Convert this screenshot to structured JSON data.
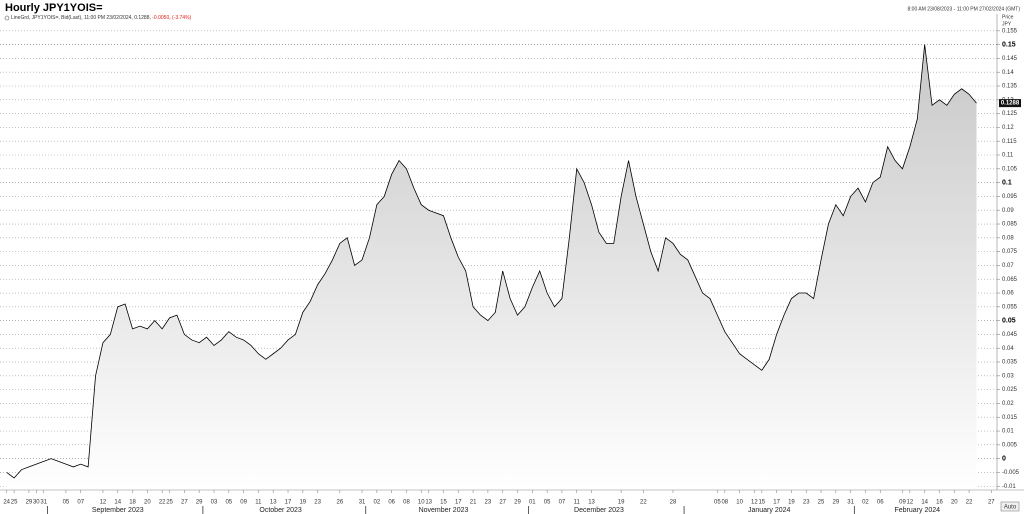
{
  "chart_data": {
    "type": "area",
    "title": "Hourly JPY1YOIS=",
    "date_range": "8:00 AM 23/08/2023 - 11:00 PM 27/02/2024 (GMT)",
    "legend_prefix": "LineGrd, ",
    "legend_details": ", Bid(Last), 11:00 PM 23/02/2024, 0.1288, ",
    "legend_change": "-0.0050",
    "legend_separator": ", ",
    "legend_pct": "(-3.74%)",
    "legend_change_color": "#e0201b",
    "y_label": "Price",
    "y_unit": "JPY",
    "auto_button": "Auto",
    "grid": true,
    "x": [
      "2023-08-24",
      "2023-08-25",
      "2023-08-28",
      "2023-08-29",
      "2023-08-30",
      "2023-08-31",
      "2023-09-01",
      "2023-09-04",
      "2023-09-05",
      "2023-09-06",
      "2023-09-07",
      "2023-09-08",
      "2023-09-11",
      "2023-09-12",
      "2023-09-13",
      "2023-09-14",
      "2023-09-15",
      "2023-09-18",
      "2023-09-19",
      "2023-09-20",
      "2023-09-21",
      "2023-09-22",
      "2023-09-25",
      "2023-09-26",
      "2023-09-27",
      "2023-09-28",
      "2023-09-29",
      "2023-10-02",
      "2023-10-03",
      "2023-10-04",
      "2023-10-05",
      "2023-10-06",
      "2023-10-09",
      "2023-10-10",
      "2023-10-11",
      "2023-10-12",
      "2023-10-13",
      "2023-10-16",
      "2023-10-17",
      "2023-10-18",
      "2023-10-19",
      "2023-10-20",
      "2023-10-23",
      "2023-10-24",
      "2023-10-25",
      "2023-10-26",
      "2023-10-27",
      "2023-10-30",
      "2023-10-31",
      "2023-11-01",
      "2023-11-02",
      "2023-11-03",
      "2023-11-06",
      "2023-11-07",
      "2023-11-08",
      "2023-11-09",
      "2023-11-10",
      "2023-11-13",
      "2023-11-14",
      "2023-11-15",
      "2023-11-16",
      "2023-11-17",
      "2023-11-20",
      "2023-11-21",
      "2023-11-22",
      "2023-11-23",
      "2023-11-24",
      "2023-11-27",
      "2023-11-28",
      "2023-11-29",
      "2023-11-30",
      "2023-12-01",
      "2023-12-04",
      "2023-12-05",
      "2023-12-06",
      "2023-12-07",
      "2023-12-08",
      "2023-12-11",
      "2023-12-12",
      "2023-12-13",
      "2023-12-14",
      "2023-12-15",
      "2023-12-18",
      "2023-12-19",
      "2023-12-20",
      "2023-12-21",
      "2023-12-22",
      "2023-12-25",
      "2023-12-26",
      "2023-12-27",
      "2023-12-28",
      "2023-12-29",
      "2024-01-01",
      "2024-01-02",
      "2024-01-03",
      "2024-01-04",
      "2024-01-05",
      "2024-01-08",
      "2024-01-09",
      "2024-01-10",
      "2024-01-11",
      "2024-01-12",
      "2024-01-15",
      "2024-01-16",
      "2024-01-17",
      "2024-01-18",
      "2024-01-19",
      "2024-01-22",
      "2024-01-23",
      "2024-01-24",
      "2024-01-25",
      "2024-01-26",
      "2024-01-29",
      "2024-01-30",
      "2024-01-31",
      "2024-02-01",
      "2024-02-02",
      "2024-02-05",
      "2024-02-06",
      "2024-02-07",
      "2024-02-08",
      "2024-02-09",
      "2024-02-12",
      "2024-02-13",
      "2024-02-14",
      "2024-02-15",
      "2024-02-16",
      "2024-02-19",
      "2024-02-20",
      "2024-02-21",
      "2024-02-22",
      "2024-02-23",
      "2024-02-26",
      "2024-02-27"
    ],
    "series": [
      {
        "name": "JPY1YOIS=",
        "color": "#000000",
        "values": [
          -0.005,
          -0.007,
          -0.004,
          -0.003,
          -0.002,
          -0.001,
          0.0,
          -0.001,
          -0.002,
          -0.003,
          -0.002,
          -0.003,
          0.03,
          0.042,
          0.045,
          0.055,
          0.056,
          0.047,
          0.048,
          0.047,
          0.05,
          0.047,
          0.051,
          0.052,
          0.045,
          0.043,
          0.042,
          0.044,
          0.041,
          0.043,
          0.046,
          0.044,
          0.043,
          0.041,
          0.038,
          0.036,
          0.038,
          0.04,
          0.043,
          0.045,
          0.053,
          0.057,
          0.063,
          0.067,
          0.072,
          0.078,
          0.08,
          0.07,
          0.072,
          0.08,
          0.092,
          0.095,
          0.103,
          0.108,
          0.105,
          0.098,
          0.092,
          0.09,
          0.089,
          0.088,
          0.08,
          0.073,
          0.068,
          0.055,
          0.052,
          0.05,
          0.053,
          0.068,
          0.058,
          0.052,
          0.055,
          0.062,
          0.068,
          0.06,
          0.055,
          0.058,
          0.08,
          0.105,
          0.1,
          0.092,
          0.082,
          0.078,
          0.078,
          0.095,
          0.108,
          0.095,
          0.085,
          0.075,
          0.068,
          0.08,
          0.078,
          0.074,
          0.072,
          0.066,
          0.06,
          0.058,
          0.052,
          0.046,
          0.042,
          0.038,
          0.036,
          0.034,
          0.032,
          0.036,
          0.045,
          0.052,
          0.058,
          0.06,
          0.06,
          0.058,
          0.072,
          0.085,
          0.092,
          0.088,
          0.095,
          0.098,
          0.093,
          0.1,
          0.102,
          0.113,
          0.108,
          0.105,
          0.113,
          0.123,
          0.15,
          0.128,
          0.13,
          0.128,
          0.132,
          0.134,
          0.132,
          0.1288,
          null,
          null
        ]
      }
    ],
    "ylim": [
      -0.011,
      0.16
    ],
    "yticks": [
      -0.01,
      -0.005,
      0,
      0.005,
      0.01,
      0.015,
      0.02,
      0.025,
      0.03,
      0.035,
      0.04,
      0.045,
      0.05,
      0.055,
      0.06,
      0.065,
      0.07,
      0.075,
      0.08,
      0.085,
      0.09,
      0.095,
      0.1,
      0.105,
      0.11,
      0.115,
      0.12,
      0.125,
      0.13,
      0.135,
      0.14,
      0.145,
      0.15,
      0.155
    ],
    "xticks": [
      {
        "value": "2023-08-24",
        "label": "24"
      },
      {
        "value": "2023-08-25",
        "label": "25"
      },
      {
        "value": "2023-08-29",
        "label": "29"
      },
      {
        "value": "2023-08-30",
        "label": "30"
      },
      {
        "value": "2023-08-31",
        "label": "31"
      },
      {
        "value": "2023-09-05",
        "label": "05"
      },
      {
        "value": "2023-09-07",
        "label": "07"
      },
      {
        "value": "2023-09-12",
        "label": "12"
      },
      {
        "value": "2023-09-14",
        "label": "14"
      },
      {
        "value": "2023-09-18",
        "label": "18"
      },
      {
        "value": "2023-09-20",
        "label": "20"
      },
      {
        "value": "2023-09-22",
        "label": "22"
      },
      {
        "value": "2023-09-25",
        "label": "25"
      },
      {
        "value": "2023-09-27",
        "label": "27"
      },
      {
        "value": "2023-09-29",
        "label": "29"
      },
      {
        "value": "2023-10-03",
        "label": "03"
      },
      {
        "value": "2023-10-05",
        "label": "05"
      },
      {
        "value": "2023-10-09",
        "label": "09"
      },
      {
        "value": "2023-10-11",
        "label": "11"
      },
      {
        "value": "2023-10-13",
        "label": "13"
      },
      {
        "value": "2023-10-17",
        "label": "17"
      },
      {
        "value": "2023-10-19",
        "label": "19"
      },
      {
        "value": "2023-10-23",
        "label": "23"
      },
      {
        "value": "2023-10-26",
        "label": "26"
      },
      {
        "value": "2023-10-31",
        "label": "31"
      },
      {
        "value": "2023-11-02",
        "label": "02"
      },
      {
        "value": "2023-11-06",
        "label": "06"
      },
      {
        "value": "2023-11-08",
        "label": "08"
      },
      {
        "value": "2023-11-10",
        "label": "10"
      },
      {
        "value": "2023-11-13",
        "label": "13"
      },
      {
        "value": "2023-11-15",
        "label": "15"
      },
      {
        "value": "2023-11-17",
        "label": "17"
      },
      {
        "value": "2023-11-21",
        "label": "21"
      },
      {
        "value": "2023-11-23",
        "label": "23"
      },
      {
        "value": "2023-11-27",
        "label": "27"
      },
      {
        "value": "2023-11-29",
        "label": "29"
      },
      {
        "value": "2023-12-01",
        "label": "01"
      },
      {
        "value": "2023-12-05",
        "label": "05"
      },
      {
        "value": "2023-12-07",
        "label": "07"
      },
      {
        "value": "2023-12-11",
        "label": "11"
      },
      {
        "value": "2023-12-13",
        "label": "13"
      },
      {
        "value": "2023-12-19",
        "label": "19"
      },
      {
        "value": "2023-12-22",
        "label": "22"
      },
      {
        "value": "2023-12-28",
        "label": "28"
      },
      {
        "value": "2024-01-05",
        "label": "05"
      },
      {
        "value": "2024-01-08",
        "label": "08"
      },
      {
        "value": "2024-01-10",
        "label": "10"
      },
      {
        "value": "2024-01-12",
        "label": "12"
      },
      {
        "value": "2024-01-15",
        "label": "15"
      },
      {
        "value": "2024-01-17",
        "label": "17"
      },
      {
        "value": "2024-01-19",
        "label": "19"
      },
      {
        "value": "2024-01-23",
        "label": "23"
      },
      {
        "value": "2024-01-25",
        "label": "25"
      },
      {
        "value": "2024-01-29",
        "label": "29"
      },
      {
        "value": "2024-01-31",
        "label": "31"
      },
      {
        "value": "2024-02-02",
        "label": "02"
      },
      {
        "value": "2024-02-06",
        "label": "06"
      },
      {
        "value": "2024-02-09",
        "label": "09"
      },
      {
        "value": "2024-02-12",
        "label": "12"
      },
      {
        "value": "2024-02-14",
        "label": "14"
      },
      {
        "value": "2024-02-16",
        "label": "16"
      },
      {
        "value": "2024-02-20",
        "label": "20"
      },
      {
        "value": "2024-02-22",
        "label": "22"
      },
      {
        "value": "2024-02-27",
        "label": "27"
      }
    ],
    "months": [
      {
        "value": "2023-09-14",
        "label": "September 2023"
      },
      {
        "value": "2023-10-16",
        "label": "October 2023"
      },
      {
        "value": "2023-11-15",
        "label": "November 2023"
      },
      {
        "value": "2023-12-14",
        "label": "December 2023"
      },
      {
        "value": "2024-01-16",
        "label": "January 2024"
      },
      {
        "value": "2024-02-13",
        "label": "February 2024"
      }
    ]
  }
}
